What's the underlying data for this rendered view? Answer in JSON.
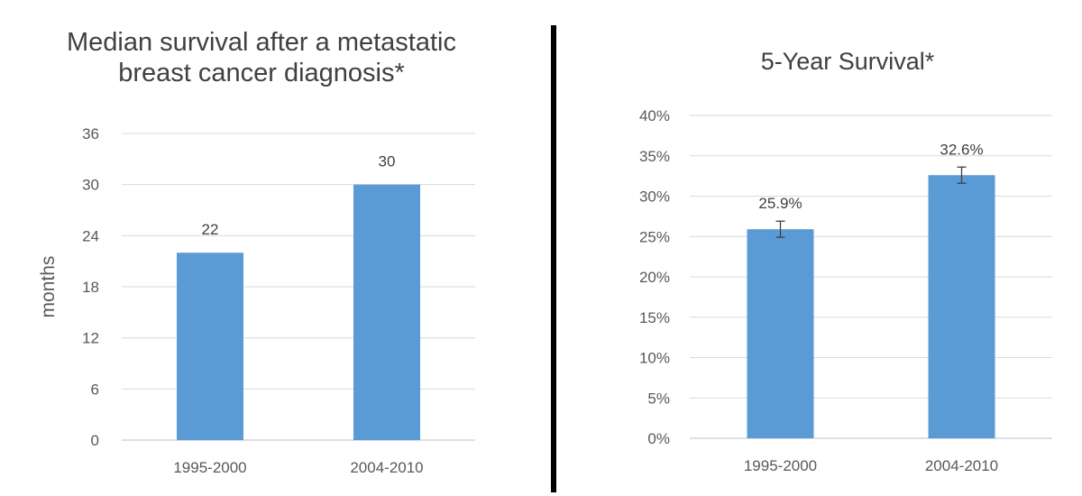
{
  "chart_data": [
    {
      "type": "bar",
      "title": "Median survival  after a metastatic\nbreast cancer diagnosis*",
      "xlabel": "",
      "ylabel": "months",
      "categories": [
        "1995-2000",
        "2004-2010"
      ],
      "values": [
        22,
        30
      ],
      "data_labels": [
        "22",
        "30"
      ],
      "ylim": [
        0,
        36
      ],
      "y_ticks": [
        "0",
        "6",
        "12",
        "18",
        "24",
        "30",
        "36"
      ],
      "grid": true,
      "color": "#5b9bd5"
    },
    {
      "type": "bar",
      "title": "5-Year Survival*",
      "xlabel": "",
      "ylabel": "",
      "categories": [
        "1995-2000",
        "2004-2010"
      ],
      "values": [
        0.259,
        0.326
      ],
      "data_labels": [
        "25.9%",
        "32.6%"
      ],
      "error_bars": [
        [
          0.249,
          0.269
        ],
        [
          0.316,
          0.336
        ]
      ],
      "ylim": [
        0,
        0.4
      ],
      "y_ticks": [
        "0%",
        "5%",
        "10%",
        "15%",
        "20%",
        "25%",
        "30%",
        "35%",
        "40%"
      ],
      "grid": true,
      "color": "#5b9bd5"
    }
  ]
}
